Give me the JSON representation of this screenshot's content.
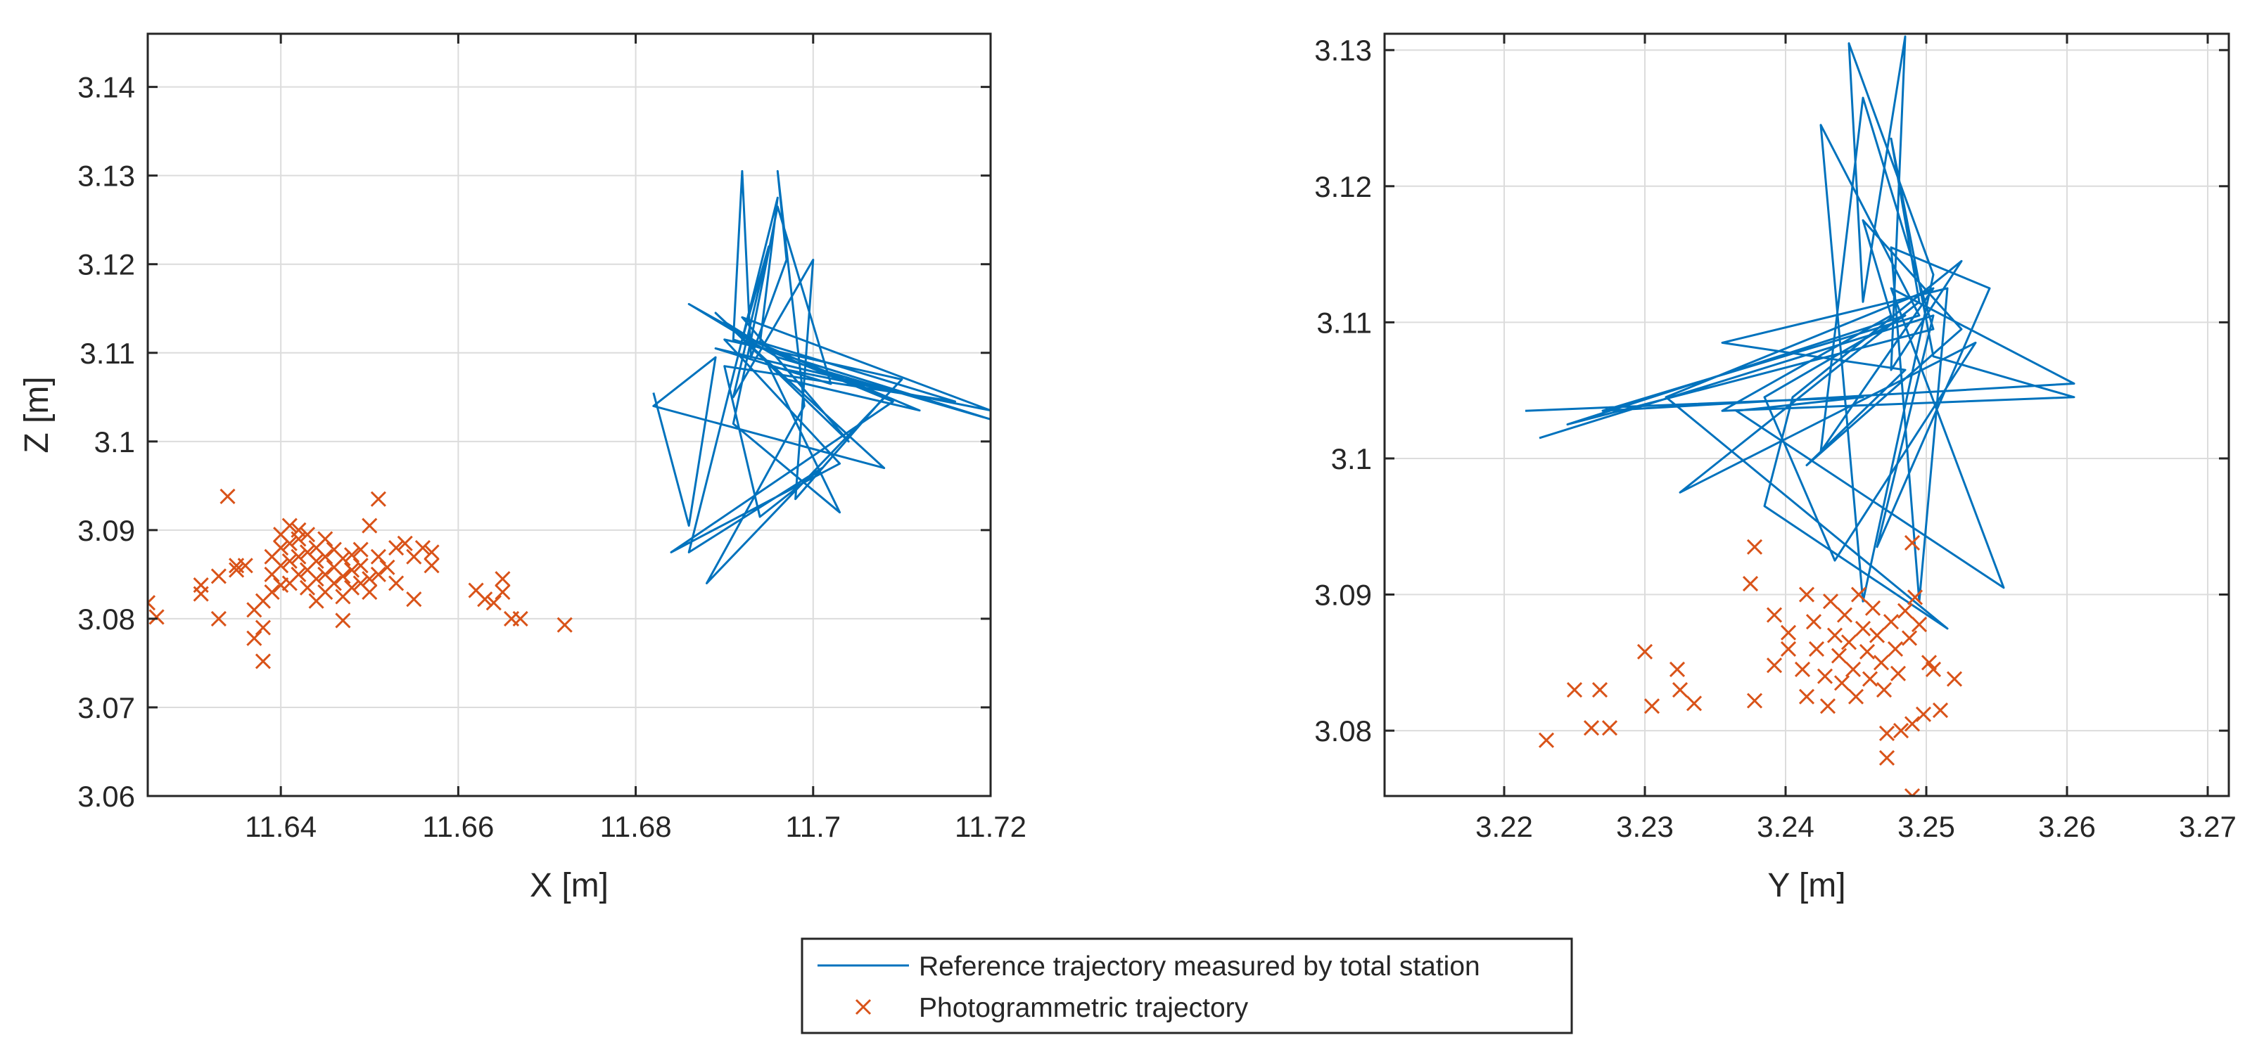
{
  "chart_data": [
    {
      "type": "line+scatter",
      "id": "xz",
      "xlabel": "X [m]",
      "ylabel": "Z [m]",
      "xlim": [
        11.625,
        11.72
      ],
      "ylim": [
        3.06,
        3.146
      ],
      "xticks": [
        11.64,
        11.66,
        11.68,
        11.7,
        11.72
      ],
      "xtick_labels": [
        "11.64",
        "11.66",
        "11.68",
        "11.7",
        "11.72"
      ],
      "yticks": [
        3.06,
        3.07,
        3.08,
        3.09,
        3.1,
        3.11,
        3.12,
        3.13,
        3.14
      ],
      "ytick_labels": [
        "3.06",
        "3.07",
        "3.08",
        "3.09",
        "3.1",
        "3.11",
        "3.12",
        "3.13",
        "3.14"
      ],
      "grid": true,
      "series": [
        {
          "name": "Reference trajectory measured by total station",
          "kind": "line",
          "color": "#0072BD",
          "points": [
            [
              11.682,
              3.1055
            ],
            [
              11.686,
              3.0905
            ],
            [
              11.689,
              3.1095
            ],
            [
              11.682,
              3.104
            ],
            [
              11.708,
              3.097
            ],
            [
              11.69,
              3.1135
            ],
            [
              11.694,
              3.111
            ],
            [
              11.686,
              3.1155
            ],
            [
              11.696,
              3.1095
            ],
            [
              11.72,
              3.1025
            ],
            [
              11.691,
              3.1115
            ],
            [
              11.692,
              3.1305
            ],
            [
              11.693,
              3.1095
            ],
            [
              11.697,
              3.1205
            ],
            [
              11.696,
              3.1305
            ],
            [
              11.699,
              3.104
            ],
            [
              11.688,
              3.084
            ],
            [
              11.71,
              3.107
            ],
            [
              11.69,
              3.1115
            ],
            [
              11.703,
              3.0975
            ],
            [
              11.684,
              3.0875
            ],
            [
              11.709,
              3.1045
            ],
            [
              11.692,
              3.1115
            ],
            [
              11.695,
              3.122
            ],
            [
              11.691,
              3.105
            ],
            [
              11.7,
              3.1205
            ],
            [
              11.698,
              3.0935
            ],
            [
              11.708,
              3.105
            ],
            [
              11.693,
              3.1115
            ],
            [
              11.716,
              3.1045
            ],
            [
              11.69,
              3.1085
            ],
            [
              11.694,
              3.0915
            ],
            [
              11.701,
              3.097
            ],
            [
              11.686,
              3.0875
            ],
            [
              11.696,
              3.1275
            ],
            [
              11.694,
              3.111
            ],
            [
              11.712,
              3.1035
            ],
            [
              11.697,
              3.107
            ],
            [
              11.689,
              3.1145
            ],
            [
              11.704,
              3.1
            ],
            [
              11.692,
              3.114
            ],
            [
              11.72,
              3.1035
            ],
            [
              11.695,
              3.1085
            ],
            [
              11.703,
              3.092
            ],
            [
              11.691,
              3.102
            ],
            [
              11.693,
              3.1115
            ],
            [
              11.696,
              3.1265
            ],
            [
              11.702,
              3.1065
            ],
            [
              11.689,
              3.1105
            ],
            [
              11.71,
              3.1055
            ]
          ]
        },
        {
          "name": "Photogrammetric trajectory",
          "kind": "scatter",
          "marker": "x",
          "color": "#D95319",
          "points": [
            [
              11.634,
              3.0938
            ],
            [
              11.651,
              3.0935
            ],
            [
              11.625,
              3.0818
            ],
            [
              11.626,
              3.0802
            ],
            [
              11.631,
              3.0828
            ],
            [
              11.631,
              3.0838
            ],
            [
              11.633,
              3.0848
            ],
            [
              11.633,
              3.08
            ],
            [
              11.635,
              3.0855
            ],
            [
              11.635,
              3.086
            ],
            [
              11.636,
              3.086
            ],
            [
              11.637,
              3.081
            ],
            [
              11.637,
              3.0778
            ],
            [
              11.638,
              3.0752
            ],
            [
              11.638,
              3.079
            ],
            [
              11.638,
              3.082
            ],
            [
              11.639,
              3.083
            ],
            [
              11.639,
              3.085
            ],
            [
              11.639,
              3.087
            ],
            [
              11.64,
              3.0838
            ],
            [
              11.64,
              3.086
            ],
            [
              11.64,
              3.088
            ],
            [
              11.64,
              3.0895
            ],
            [
              11.641,
              3.084
            ],
            [
              11.641,
              3.0865
            ],
            [
              11.641,
              3.0885
            ],
            [
              11.641,
              3.0905
            ],
            [
              11.642,
              3.085
            ],
            [
              11.642,
              3.087
            ],
            [
              11.642,
              3.089
            ],
            [
              11.642,
              3.09
            ],
            [
              11.643,
              3.0835
            ],
            [
              11.643,
              3.0855
            ],
            [
              11.643,
              3.0875
            ],
            [
              11.643,
              3.0895
            ],
            [
              11.644,
              3.082
            ],
            [
              11.644,
              3.0845
            ],
            [
              11.644,
              3.0865
            ],
            [
              11.644,
              3.088
            ],
            [
              11.645,
              3.083
            ],
            [
              11.645,
              3.085
            ],
            [
              11.645,
              3.087
            ],
            [
              11.645,
              3.089
            ],
            [
              11.646,
              3.084
            ],
            [
              11.646,
              3.0858
            ],
            [
              11.646,
              3.0878
            ],
            [
              11.647,
              3.0798
            ],
            [
              11.647,
              3.0825
            ],
            [
              11.647,
              3.0848
            ],
            [
              11.647,
              3.0868
            ],
            [
              11.648,
              3.0835
            ],
            [
              11.648,
              3.0855
            ],
            [
              11.648,
              3.0872
            ],
            [
              11.649,
              3.084
            ],
            [
              11.649,
              3.086
            ],
            [
              11.649,
              3.0878
            ],
            [
              11.65,
              3.0845
            ],
            [
              11.65,
              3.083
            ],
            [
              11.65,
              3.0905
            ],
            [
              11.651,
              3.085
            ],
            [
              11.651,
              3.087
            ],
            [
              11.652,
              3.0858
            ],
            [
              11.653,
              3.084
            ],
            [
              11.653,
              3.088
            ],
            [
              11.654,
              3.0885
            ],
            [
              11.655,
              3.0822
            ],
            [
              11.655,
              3.087
            ],
            [
              11.656,
              3.088
            ],
            [
              11.657,
              3.086
            ],
            [
              11.657,
              3.0875
            ],
            [
              11.662,
              3.0832
            ],
            [
              11.663,
              3.0822
            ],
            [
              11.664,
              3.0818
            ],
            [
              11.665,
              3.0845
            ],
            [
              11.665,
              3.083
            ],
            [
              11.666,
              3.08
            ],
            [
              11.667,
              3.08
            ],
            [
              11.672,
              3.0793
            ]
          ]
        }
      ]
    },
    {
      "type": "line+scatter",
      "id": "yz",
      "xlabel": "Y [m]",
      "ylabel": "",
      "xlim": [
        3.2115,
        3.2715
      ],
      "ylim": [
        3.0752,
        3.1312
      ],
      "xticks": [
        3.22,
        3.23,
        3.24,
        3.25,
        3.26,
        3.27
      ],
      "xtick_labels": [
        "3.22",
        "3.23",
        "3.24",
        "3.25",
        "3.26",
        "3.27"
      ],
      "yticks": [
        3.08,
        3.09,
        3.1,
        3.11,
        3.12,
        3.13
      ],
      "ytick_labels": [
        "3.08",
        "3.09",
        "3.1",
        "3.11",
        "3.12",
        "3.13"
      ],
      "grid": true,
      "series": [
        {
          "name": "Reference trajectory measured by total station",
          "kind": "line",
          "color": "#0072BD",
          "points": [
            [
              3.2215,
              3.1035
            ],
            [
              3.2455,
              3.1045
            ],
            [
              3.2365,
              3.1035
            ],
            [
              3.2555,
              3.0905
            ],
            [
              3.2475,
              3.1125
            ],
            [
              3.2605,
              3.1055
            ],
            [
              3.227,
              3.1035
            ],
            [
              3.2495,
              3.1105
            ],
            [
              3.2425,
              3.1245
            ],
            [
              3.2455,
              3.0895
            ],
            [
              3.2505,
              3.1135
            ],
            [
              3.2445,
              3.1305
            ],
            [
              3.2455,
              3.1115
            ],
            [
              3.2485,
              3.131
            ],
            [
              3.2475,
              3.1065
            ],
            [
              3.2525,
              3.1145
            ],
            [
              3.2405,
              3.1045
            ],
            [
              3.2385,
              3.0965
            ],
            [
              3.2515,
              3.0875
            ],
            [
              3.2315,
              3.1045
            ],
            [
              3.2505,
              3.1125
            ],
            [
              3.2425,
              3.1005
            ],
            [
              3.2455,
              3.1265
            ],
            [
              3.2505,
              3.1095
            ],
            [
              3.2245,
              3.1025
            ],
            [
              3.2485,
              3.1105
            ],
            [
              3.2385,
              3.1045
            ],
            [
              3.2435,
              3.0925
            ],
            [
              3.2535,
              3.1085
            ],
            [
              3.2325,
              3.0975
            ],
            [
              3.2495,
              3.1115
            ],
            [
              3.2475,
              3.1235
            ],
            [
              3.2505,
              3.1075
            ],
            [
              3.2605,
              3.1045
            ],
            [
              3.2355,
              3.1035
            ],
            [
              3.2475,
              3.1105
            ],
            [
              3.2455,
              3.1175
            ],
            [
              3.2525,
              3.1095
            ],
            [
              3.2415,
              3.0995
            ],
            [
              3.2485,
              3.1065
            ],
            [
              3.2355,
              3.1085
            ],
            [
              3.2515,
              3.1125
            ],
            [
              3.2495,
              3.0895
            ],
            [
              3.2475,
              3.1155
            ],
            [
              3.2545,
              3.1125
            ],
            [
              3.2465,
              3.0935
            ],
            [
              3.2505,
              3.1105
            ],
            [
              3.2225,
              3.1015
            ]
          ]
        },
        {
          "name": "Photogrammetric trajectory",
          "kind": "scatter",
          "marker": "x",
          "color": "#D95319",
          "points": [
            [
              3.223,
              3.0793
            ],
            [
              3.225,
              3.083
            ],
            [
              3.2262,
              3.0802
            ],
            [
              3.2268,
              3.083
            ],
            [
              3.2275,
              3.0802
            ],
            [
              3.23,
              3.0858
            ],
            [
              3.2305,
              3.0818
            ],
            [
              3.2323,
              3.0845
            ],
            [
              3.2325,
              3.083
            ],
            [
              3.2335,
              3.082
            ],
            [
              3.2375,
              3.0908
            ],
            [
              3.2378,
              3.0935
            ],
            [
              3.2378,
              3.0822
            ],
            [
              3.2392,
              3.0885
            ],
            [
              3.2392,
              3.0848
            ],
            [
              3.2402,
              3.0872
            ],
            [
              3.2402,
              3.086
            ],
            [
              3.2412,
              3.0845
            ],
            [
              3.2415,
              3.0825
            ],
            [
              3.2415,
              3.09
            ],
            [
              3.242,
              3.088
            ],
            [
              3.2422,
              3.086
            ],
            [
              3.2428,
              3.084
            ],
            [
              3.243,
              3.0818
            ],
            [
              3.2432,
              3.0895
            ],
            [
              3.2435,
              3.087
            ],
            [
              3.2438,
              3.0855
            ],
            [
              3.244,
              3.0835
            ],
            [
              3.2442,
              3.0885
            ],
            [
              3.2445,
              3.0865
            ],
            [
              3.2448,
              3.0845
            ],
            [
              3.245,
              3.0825
            ],
            [
              3.2452,
              3.09
            ],
            [
              3.2455,
              3.0875
            ],
            [
              3.2458,
              3.0858
            ],
            [
              3.246,
              3.0838
            ],
            [
              3.2462,
              3.089
            ],
            [
              3.2465,
              3.087
            ],
            [
              3.2468,
              3.085
            ],
            [
              3.247,
              3.083
            ],
            [
              3.2472,
              3.0798
            ],
            [
              3.2472,
              3.078
            ],
            [
              3.2475,
              3.088
            ],
            [
              3.2478,
              3.086
            ],
            [
              3.248,
              3.0842
            ],
            [
              3.2482,
              3.08
            ],
            [
              3.2485,
              3.0888
            ],
            [
              3.2488,
              3.0868
            ],
            [
              3.249,
              3.0805
            ],
            [
              3.249,
              3.0752
            ],
            [
              3.249,
              3.0938
            ],
            [
              3.2492,
              3.0898
            ],
            [
              3.2495,
              3.0878
            ],
            [
              3.2498,
              3.0812
            ],
            [
              3.2502,
              3.085
            ],
            [
              3.2505,
              3.0845
            ],
            [
              3.251,
              3.0815
            ],
            [
              3.252,
              3.0838
            ]
          ]
        }
      ]
    }
  ],
  "legend": {
    "placement": "bottom-center",
    "entries": [
      {
        "label": "Reference trajectory measured by total station",
        "marker": "line",
        "color": "#0072BD"
      },
      {
        "label": "Photogrammetric trajectory",
        "marker": "x",
        "color": "#D95319"
      }
    ]
  }
}
